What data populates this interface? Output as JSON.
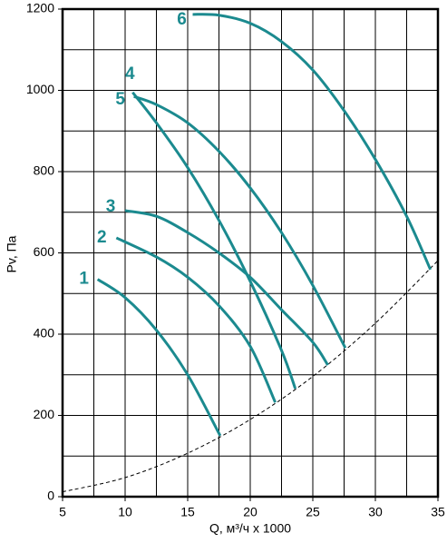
{
  "chart_data": {
    "type": "line",
    "xlabel": "Q, м³/ч x 1000",
    "ylabel": "Pv, Па",
    "xlim": [
      5,
      35
    ],
    "ylim": [
      0,
      1200
    ],
    "xticks": [
      5,
      10,
      15,
      20,
      25,
      30,
      35
    ],
    "yticks": [
      0,
      200,
      400,
      600,
      800,
      1000,
      1200
    ],
    "minor_xticks": [
      7.5,
      12.5,
      17.5,
      22.5,
      27.5,
      32.5
    ],
    "minor_yticks": [
      100,
      300,
      500,
      700,
      900,
      1100
    ],
    "grid": true,
    "series": [
      {
        "name": "1",
        "color": "#1b8a8f",
        "x": [
          7.8,
          10,
          12.5,
          15,
          17.6
        ],
        "values": [
          535,
          490,
          410,
          300,
          150
        ]
      },
      {
        "name": "2",
        "color": "#1b8a8f",
        "x": [
          9.3,
          12.5,
          15,
          17.5,
          20,
          22
        ],
        "values": [
          637,
          590,
          540,
          470,
          370,
          232
        ]
      },
      {
        "name": "3",
        "color": "#1b8a8f",
        "x": [
          10,
          12.5,
          15,
          17.5,
          20,
          22.5,
          25,
          26.2
        ],
        "values": [
          704,
          690,
          650,
          600,
          540,
          460,
          380,
          324
        ]
      },
      {
        "name": "4",
        "color": "#1b8a8f",
        "x": [
          10.6,
          12.5,
          15,
          17.5,
          20,
          22.5,
          23.6
        ],
        "values": [
          995,
          920,
          810,
          680,
          530,
          360,
          266
        ]
      },
      {
        "name": "5",
        "color": "#1b8a8f",
        "x": [
          10.7,
          12.5,
          15,
          17.5,
          20,
          22.5,
          25,
          27.6
        ],
        "values": [
          985,
          965,
          920,
          850,
          760,
          650,
          520,
          366
        ]
      },
      {
        "name": "6",
        "color": "#1b8a8f",
        "x": [
          15.4,
          17.5,
          20,
          22.5,
          25,
          27.5,
          30,
          32.5,
          34.4
        ],
        "values": [
          1187,
          1185,
          1165,
          1120,
          1050,
          950,
          830,
          690,
          559
        ]
      }
    ],
    "system_curve": {
      "color": "#000000",
      "dashed": true,
      "x": [
        5,
        10,
        15,
        20,
        25,
        30,
        35
      ],
      "values": [
        12,
        47,
        107,
        190,
        296,
        427,
        581
      ]
    }
  }
}
